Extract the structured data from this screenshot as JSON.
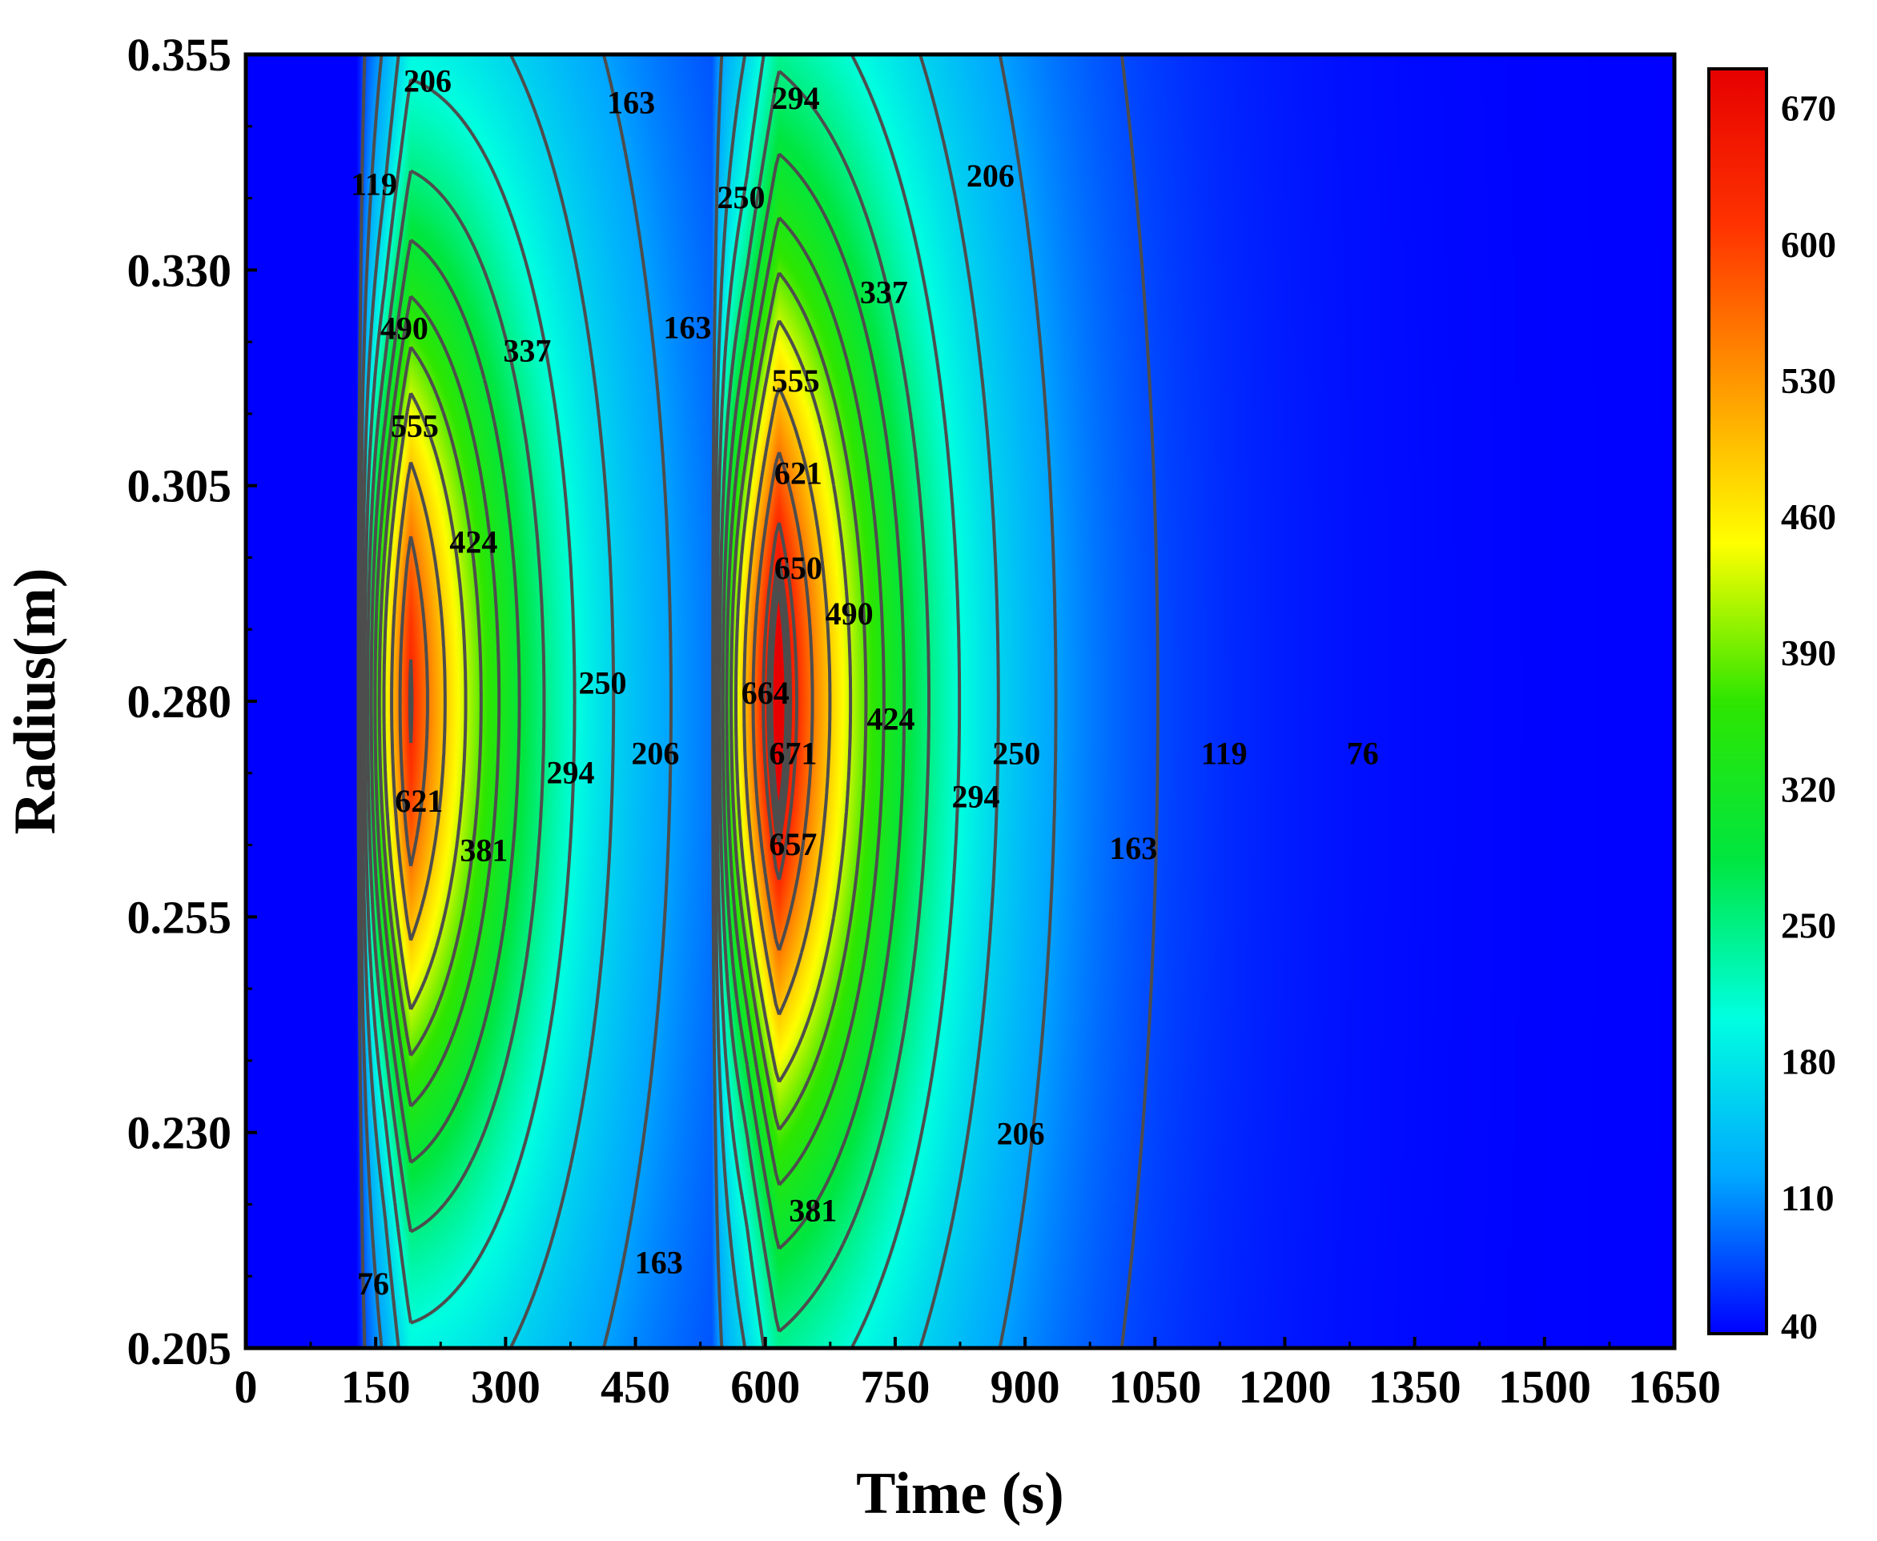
{
  "chart_data": {
    "type": "heatmap",
    "title": "",
    "xlabel": "Time (s)",
    "ylabel": "Radius(m)",
    "xlim": [
      0,
      1650
    ],
    "ylim": [
      0.205,
      0.355
    ],
    "x_ticks": [
      "0",
      "150",
      "300",
      "450",
      "600",
      "750",
      "900",
      "1050",
      "1200",
      "1350",
      "1500",
      "1650"
    ],
    "y_ticks": [
      "0.205",
      "0.230",
      "0.255",
      "0.280",
      "0.305",
      "0.330",
      "0.355"
    ],
    "colorbar": {
      "range": [
        40,
        690
      ],
      "ticks": [
        "40",
        "110",
        "180",
        "250",
        "320",
        "390",
        "460",
        "530",
        "600",
        "670"
      ],
      "colors": [
        "#0000ff",
        "#00a8ff",
        "#00ffe0",
        "#00e640",
        "#2ee600",
        "#ffff00",
        "#ff9900",
        "#ff3300",
        "#e60000"
      ]
    },
    "heat_sources": [
      {
        "t_start": 130,
        "t_peak": 190,
        "r_center": 0.28,
        "peak_value": 628
      },
      {
        "t_start": 540,
        "t_peak": 615,
        "r_center": 0.28,
        "peak_value": 675
      }
    ],
    "contour_labels": [
      {
        "text": "206",
        "t": 210,
        "r": 0.352
      },
      {
        "text": "163",
        "t": 445,
        "r": 0.3495
      },
      {
        "text": "294",
        "t": 635,
        "r": 0.35
      },
      {
        "text": "119",
        "t": 148,
        "r": 0.34
      },
      {
        "text": "206",
        "t": 860,
        "r": 0.341
      },
      {
        "text": "250",
        "t": 572,
        "r": 0.3385
      },
      {
        "text": "337",
        "t": 737,
        "r": 0.3275
      },
      {
        "text": "163",
        "t": 510,
        "r": 0.3234
      },
      {
        "text": "490",
        "t": 183,
        "r": 0.3233
      },
      {
        "text": "337",
        "t": 325,
        "r": 0.3207
      },
      {
        "text": "555",
        "t": 635,
        "r": 0.3172
      },
      {
        "text": "555",
        "t": 195,
        "r": 0.312
      },
      {
        "text": "621",
        "t": 638,
        "r": 0.3065
      },
      {
        "text": "424",
        "t": 263,
        "r": 0.2985
      },
      {
        "text": "650",
        "t": 638,
        "r": 0.2955
      },
      {
        "text": "490",
        "t": 697,
        "r": 0.2902
      },
      {
        "text": "250",
        "t": 412,
        "r": 0.2822
      },
      {
        "text": "664",
        "t": 600,
        "r": 0.281
      },
      {
        "text": "424",
        "t": 745,
        "r": 0.278
      },
      {
        "text": "206",
        "t": 473,
        "r": 0.274
      },
      {
        "text": "671",
        "t": 632,
        "r": 0.274
      },
      {
        "text": "250",
        "t": 890,
        "r": 0.274
      },
      {
        "text": "119",
        "t": 1130,
        "r": 0.274
      },
      {
        "text": "76",
        "t": 1290,
        "r": 0.274
      },
      {
        "text": "294",
        "t": 375,
        "r": 0.2718
      },
      {
        "text": "621",
        "t": 200,
        "r": 0.2685
      },
      {
        "text": "294",
        "t": 843,
        "r": 0.269
      },
      {
        "text": "381",
        "t": 275,
        "r": 0.2628
      },
      {
        "text": "657",
        "t": 632,
        "r": 0.2635
      },
      {
        "text": "163",
        "t": 1025,
        "r": 0.263
      },
      {
        "text": "206",
        "t": 895,
        "r": 0.2299
      },
      {
        "text": "381",
        "t": 655,
        "r": 0.221
      },
      {
        "text": "163",
        "t": 477,
        "r": 0.215
      },
      {
        "text": "76",
        "t": 147,
        "r": 0.2125
      }
    ]
  }
}
